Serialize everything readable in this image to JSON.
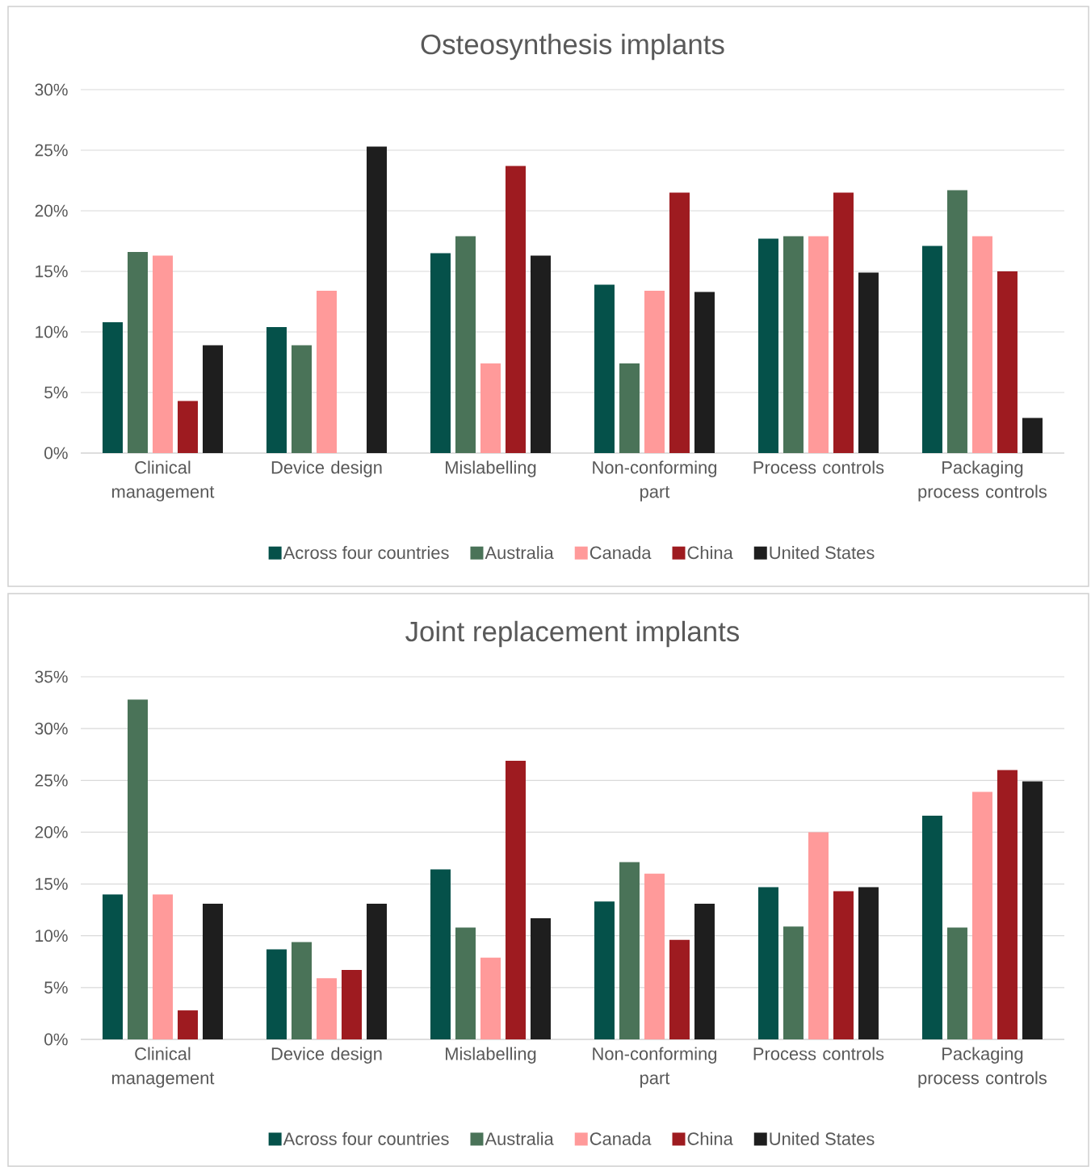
{
  "chart_data": [
    {
      "type": "bar",
      "title": "Osteosynthesis implants",
      "categories": [
        "Clinical management",
        "Device design",
        "Mislabelling",
        "Non-conforming part",
        "Process controls",
        "Packaging process controls"
      ],
      "series": [
        {
          "name": "Across four countries",
          "color": "#05514a",
          "values": [
            10.8,
            10.4,
            16.5,
            13.9,
            17.7,
            17.1
          ]
        },
        {
          "name": "Australia",
          "color": "#4a7358",
          "values": [
            16.6,
            8.9,
            17.9,
            7.4,
            17.9,
            21.7
          ]
        },
        {
          "name": "Canada",
          "color": "#ff9a9a",
          "values": [
            16.3,
            13.4,
            7.4,
            13.4,
            17.9,
            17.9
          ]
        },
        {
          "name": "China",
          "color": "#9e1b20",
          "values": [
            4.3,
            0,
            23.7,
            21.5,
            21.5,
            15.0
          ]
        },
        {
          "name": "United States",
          "color": "#1e1e1e",
          "values": [
            8.9,
            25.3,
            16.3,
            13.3,
            14.9,
            2.9
          ]
        }
      ],
      "ylim": [
        0,
        30
      ],
      "yticks": [
        {
          "value": 0,
          "label": "0%"
        },
        {
          "value": 5,
          "label": "5%"
        },
        {
          "value": 10,
          "label": "10%"
        },
        {
          "value": 15,
          "label": "15%"
        },
        {
          "value": 20,
          "label": "20%"
        },
        {
          "value": 25,
          "label": "25%"
        },
        {
          "value": 30,
          "label": "30%"
        }
      ],
      "grid": "y",
      "legend": "bottom"
    },
    {
      "type": "bar",
      "title": "Joint replacement implants",
      "categories": [
        "Clinical management",
        "Device design",
        "Mislabelling",
        "Non-conforming part",
        "Process controls",
        "Packaging process controls"
      ],
      "series": [
        {
          "name": "Across four countries",
          "color": "#05514a",
          "values": [
            14.0,
            8.7,
            16.4,
            13.3,
            14.7,
            21.6
          ]
        },
        {
          "name": "Australia",
          "color": "#4a7358",
          "values": [
            32.8,
            9.4,
            10.8,
            17.1,
            10.9,
            10.8
          ]
        },
        {
          "name": "Canada",
          "color": "#ff9a9a",
          "values": [
            14.0,
            5.9,
            7.9,
            16.0,
            20.0,
            23.9
          ]
        },
        {
          "name": "China",
          "color": "#9e1b20",
          "values": [
            2.8,
            6.7,
            26.9,
            9.6,
            14.3,
            26.0
          ]
        },
        {
          "name": "United States",
          "color": "#1e1e1e",
          "values": [
            13.1,
            13.1,
            11.7,
            13.1,
            14.7,
            24.9
          ]
        }
      ],
      "ylim": [
        0,
        35
      ],
      "yticks": [
        {
          "value": 0,
          "label": "0%"
        },
        {
          "value": 5,
          "label": "5%"
        },
        {
          "value": 10,
          "label": "10%"
        },
        {
          "value": 15,
          "label": "15%"
        },
        {
          "value": 20,
          "label": "20%"
        },
        {
          "value": 25,
          "label": "25%"
        },
        {
          "value": 30,
          "label": "30%"
        },
        {
          "value": 35,
          "label": "35%"
        }
      ],
      "grid": "y",
      "legend": "bottom"
    }
  ]
}
